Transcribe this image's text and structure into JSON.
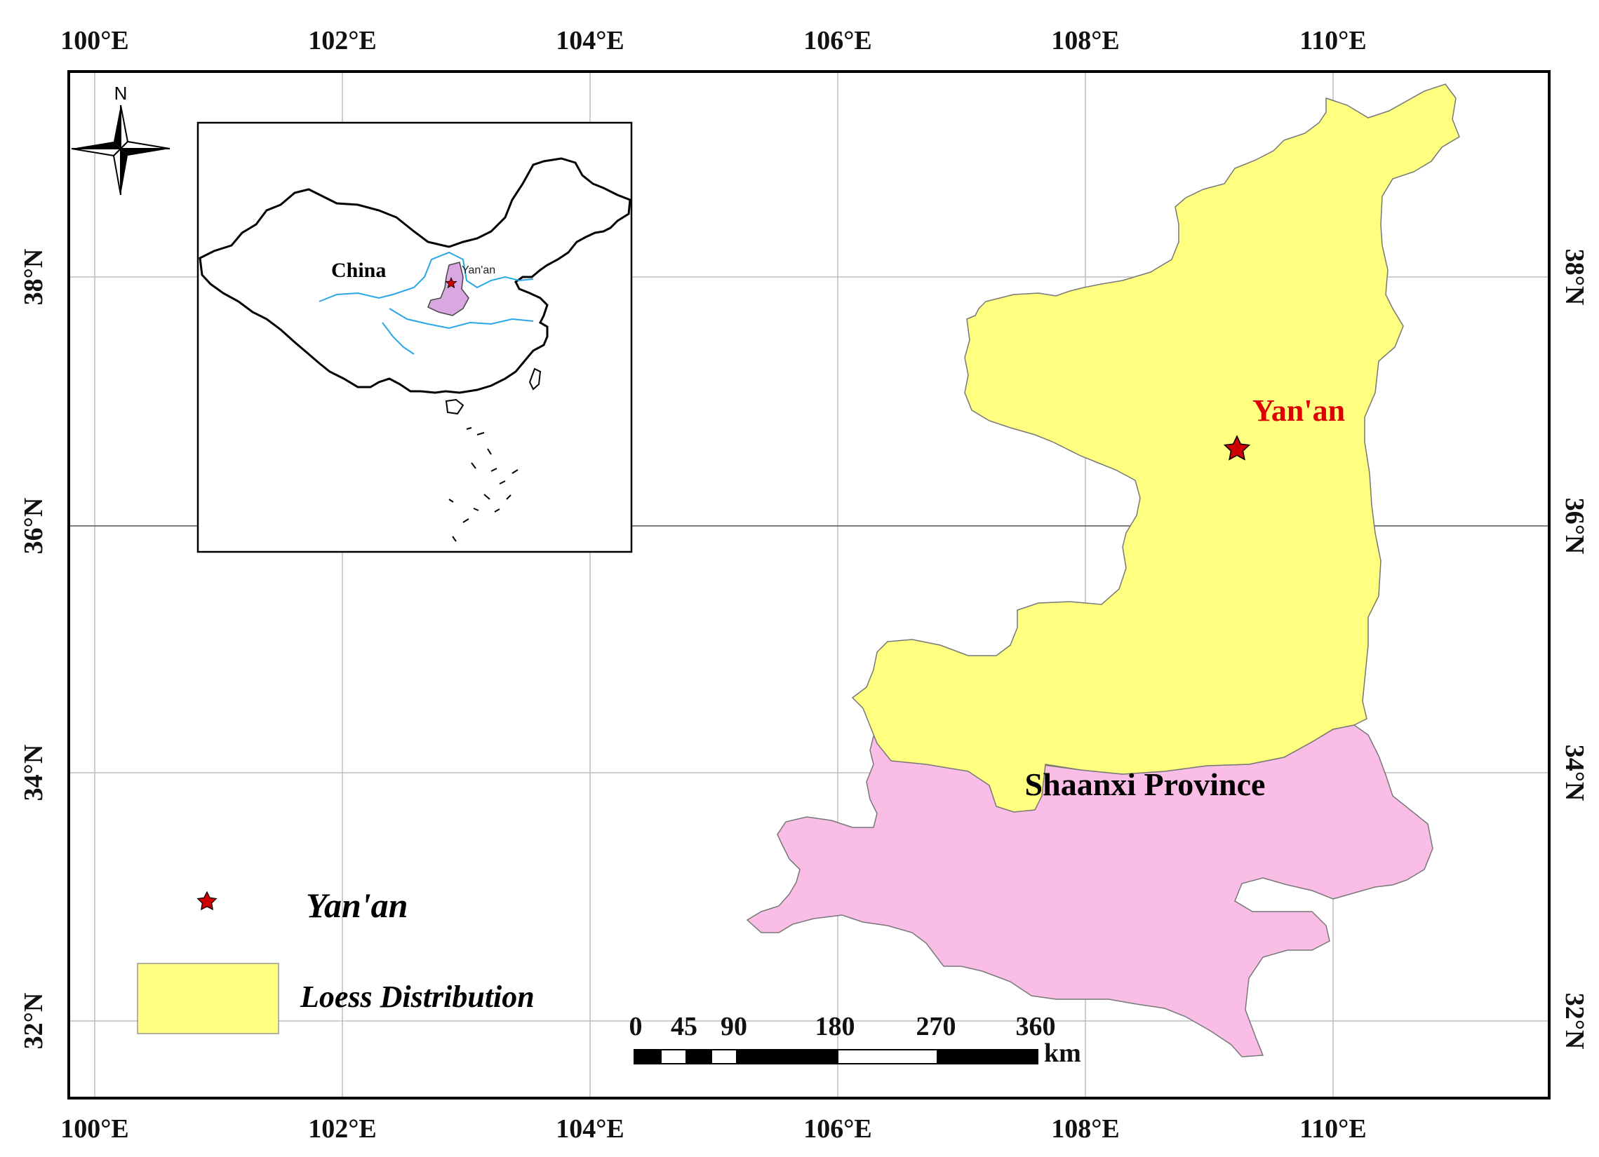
{
  "map": {
    "lon_labels": [
      "100°E",
      "102°E",
      "104°E",
      "106°E",
      "108°E",
      "110°E"
    ],
    "lat_labels": [
      "38°N",
      "36°N",
      "34°N",
      "32°N"
    ],
    "north_arrow_label": "N",
    "city_label": "Yan'an",
    "province_label": "Shaanxi Province",
    "inset": {
      "country_label": "China",
      "city_label": "Yan'an"
    },
    "legend": {
      "items": [
        {
          "label": "Yan'an",
          "symbol": "star",
          "color": "#cc0000"
        },
        {
          "label": "Loess Distribution",
          "symbol": "patch",
          "color": "#ffff80"
        }
      ]
    },
    "scale_bar": {
      "ticks": [
        "0",
        "45",
        "90",
        "180",
        "270",
        "360"
      ],
      "unit": "km"
    },
    "colors": {
      "loess": "#ffff80",
      "province": "#f9bde6",
      "city_star": "#cc0000",
      "rivers": "#2aa6e8",
      "graticule": "#bdbdbd"
    }
  }
}
